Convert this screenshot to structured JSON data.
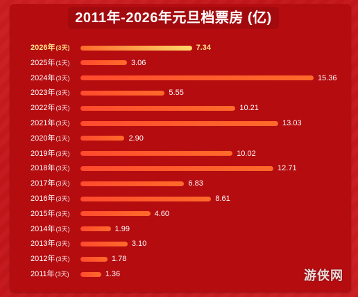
{
  "chart_data": {
    "type": "bar",
    "orientation": "horizontal",
    "title": "2011年-2026年元旦档票房 (亿)",
    "categories": [
      "2026年",
      "2025年",
      "2024年",
      "2023年",
      "2022年",
      "2021年",
      "2020年",
      "2019年",
      "2018年",
      "2017年",
      "2016年",
      "2015年",
      "2014年",
      "2013年",
      "2012年",
      "2011年"
    ],
    "days": [
      "(3天)",
      "(1天)",
      "(3天)",
      "(3天)",
      "(3天)",
      "(3天)",
      "(1天)",
      "(3天)",
      "(3天)",
      "(3天)",
      "(3天)",
      "(3天)",
      "(3天)",
      "(3天)",
      "(3天)",
      "(3天)"
    ],
    "values": [
      7.34,
      3.06,
      15.36,
      5.55,
      10.21,
      13.03,
      2.9,
      10.02,
      12.71,
      6.83,
      8.61,
      4.6,
      1.99,
      3.1,
      1.78,
      1.36
    ],
    "value_labels": [
      "7.34",
      "3.06",
      "15.36",
      "5.55",
      "10.21",
      "13.03",
      "2.90",
      "10.02",
      "12.71",
      "6.83",
      "8.61",
      "4.60",
      "1.99",
      "3.10",
      "1.78",
      "1.36"
    ],
    "highlight_index": 0,
    "xlim": [
      0,
      15.36
    ],
    "grid": false,
    "colors": {
      "bar": "#ff4a2e",
      "highlight_bar_end": "#ffd86b",
      "highlight_text": "#ffe58a",
      "background": "#b50c10"
    }
  },
  "watermark": "游侠网"
}
